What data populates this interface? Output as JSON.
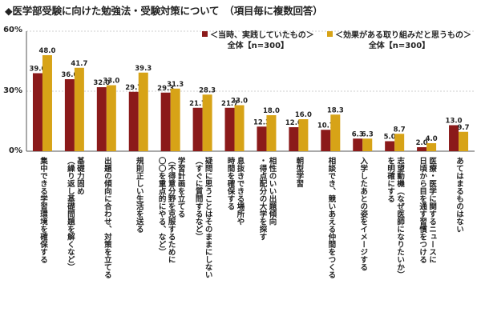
{
  "title": "◆医学部受験に向けた勉強法・受験対策について　（項目毎に複数回答）",
  "colors": {
    "series1": "#8b1a1a",
    "series2": "#d7a317",
    "grid": "#cfcfcf",
    "axis": "#555555"
  },
  "legend": {
    "items": [
      {
        "label": "＜当時、実践していたもの＞",
        "sub": "全体【n=300】"
      },
      {
        "label": "＜効果がある取り組みだと思うもの＞",
        "sub": "全体【n=300】"
      }
    ]
  },
  "y_ticks": [
    "0%",
    "30%",
    "60%"
  ],
  "chart_data": {
    "type": "bar",
    "title": "◆医学部受験に向けた勉強法・受験対策について　（項目毎に複数回答）",
    "ylim": [
      0,
      60
    ],
    "yticks": [
      0,
      30,
      60
    ],
    "categories": [
      "集中できる学習環境を確保する",
      "基礎力固め\n（繰り返し基礎問題を解くなど）",
      "出題の傾向に合わせ、対策を立てる",
      "規則正しい生活を送る",
      "学習計画を立てる\n（不得意分野を克服するために\n〇〇を重点的にやる、など）",
      "疑問に思うことはそのままにしない\n（すぐに質問するなど）",
      "息抜きできる場所や\n時間を確保する",
      "相性のいい出題傾向\n・得点配分の大学を探す",
      "朝型学習",
      "相談でき、競いあえる仲間をつくる",
      "入学したあとの姿をイメージする",
      "志望動機（なぜ医師になりたいか）\nを明確にする",
      "医療・医学に関するニュースに\n日頃から目を通す習慣をつける",
      "あてはまるものはない"
    ],
    "series": [
      {
        "name": "＜当時、実践していたもの＞全体【n=300】",
        "values": [
          39.0,
          36.0,
          32.0,
          29.7,
          29.3,
          21.7,
          21.7,
          12.3,
          12.0,
          10.7,
          6.3,
          5.0,
          2.0,
          13.0
        ]
      },
      {
        "name": "＜効果がある取り組みだと思うもの＞全体【n=300】",
        "values": [
          48.0,
          41.7,
          33.0,
          39.3,
          31.3,
          28.3,
          23.0,
          18.0,
          16.0,
          18.3,
          6.3,
          8.7,
          4.0,
          9.7
        ]
      }
    ]
  }
}
